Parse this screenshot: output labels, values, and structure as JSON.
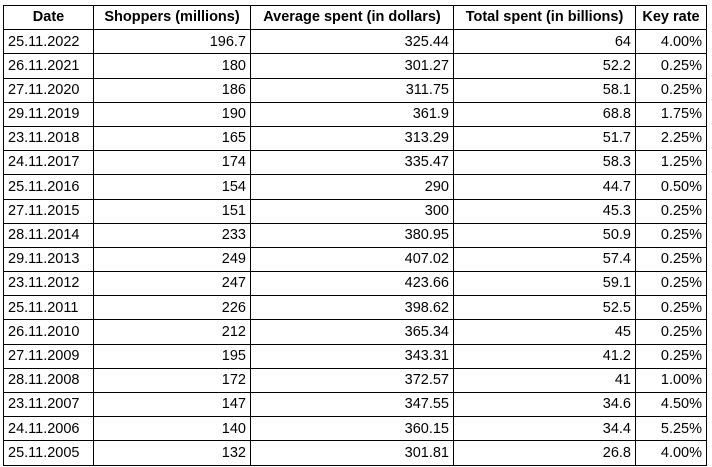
{
  "table": {
    "headers": [
      "Date",
      "Shoppers (millions)",
      "Average spent (in dollars)",
      "Total spent (in billions)",
      "Key rate"
    ],
    "rows": [
      [
        "25.11.2022",
        "196.7",
        "325.44",
        "64",
        "4.00%"
      ],
      [
        "26.11.2021",
        "180",
        "301.27",
        "52.2",
        "0.25%"
      ],
      [
        "27.11.2020",
        "186",
        "311.75",
        "58.1",
        "0.25%"
      ],
      [
        "29.11.2019",
        "190",
        "361.9",
        "68.8",
        "1.75%"
      ],
      [
        "23.11.2018",
        "165",
        "313.29",
        "51.7",
        "2.25%"
      ],
      [
        "24.11.2017",
        "174",
        "335.47",
        "58.3",
        "1.25%"
      ],
      [
        "25.11.2016",
        "154",
        "290",
        "44.7",
        "0.50%"
      ],
      [
        "27.11.2015",
        "151",
        "300",
        "45.3",
        "0.25%"
      ],
      [
        "28.11.2014",
        "233",
        "380.95",
        "50.9",
        "0.25%"
      ],
      [
        "29.11.2013",
        "249",
        "407.02",
        "57.4",
        "0.25%"
      ],
      [
        "23.11.2012",
        "247",
        "423.66",
        "59.1",
        "0.25%"
      ],
      [
        "25.11.2011",
        "226",
        "398.62",
        "52.5",
        "0.25%"
      ],
      [
        "26.11.2010",
        "212",
        "365.34",
        "45",
        "0.25%"
      ],
      [
        "27.11.2009",
        "195",
        "343.31",
        "41.2",
        "0.25%"
      ],
      [
        "28.11.2008",
        "172",
        "372.57",
        "41",
        "1.00%"
      ],
      [
        "23.11.2007",
        "147",
        "347.55",
        "34.6",
        "4.50%"
      ],
      [
        "24.11.2006",
        "140",
        "360.15",
        "34.4",
        "5.25%"
      ],
      [
        "25.11.2005",
        "132",
        "301.81",
        "26.8",
        "4.00%"
      ]
    ]
  }
}
